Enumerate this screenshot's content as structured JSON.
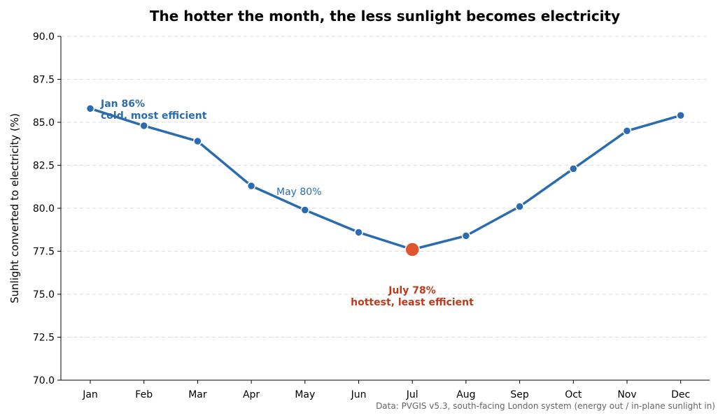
{
  "chart_data": {
    "type": "line",
    "title": "The hotter the month, the less sunlight becomes electricity",
    "xlabel": "",
    "ylabel": "Sunlight converted to electricity (%)",
    "categories": [
      "Jan",
      "Feb",
      "Mar",
      "Apr",
      "May",
      "Jun",
      "Jul",
      "Aug",
      "Sep",
      "Oct",
      "Nov",
      "Dec"
    ],
    "series": [
      {
        "values": [
          85.8,
          84.8,
          83.9,
          81.3,
          79.9,
          78.6,
          77.6,
          78.4,
          80.1,
          82.3,
          84.5,
          85.4
        ]
      }
    ],
    "ylim": [
      70.0,
      90.0
    ],
    "yticks": [
      "70.0",
      "72.5",
      "75.0",
      "77.5",
      "80.0",
      "82.5",
      "85.0",
      "87.5",
      "90.0"
    ],
    "grid": "horizontal dashed",
    "highlight_index": 6,
    "annotations": {
      "jan_line1": "Jan 86%",
      "jan_line2": "cold, most efficient",
      "may": "May 80%",
      "jul_line1": "July 78%",
      "jul_line2": "hottest, least efficient"
    },
    "source": "Data: PVGIS v5.3, south-facing London system (energy out / in-plane sunlight in)",
    "colors": {
      "line": "#2b6cb0",
      "highlight": "#e05530",
      "highlight_text": "#c0391b",
      "grid": "#dddddd"
    }
  }
}
